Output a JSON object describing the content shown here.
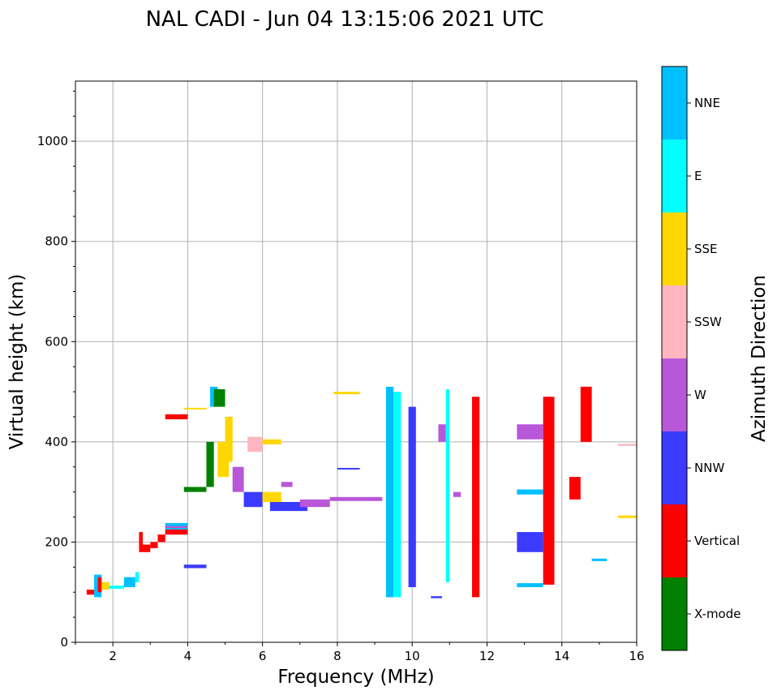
{
  "chart_data": {
    "type": "scatter",
    "title": "NAL CADI - Jun 04 13:15:06 2021 UTC",
    "xlabel": "Frequency (MHz)",
    "ylabel": "Virtual height (km)",
    "xlim": [
      1,
      16
    ],
    "ylim": [
      0,
      1120
    ],
    "xticks": [
      "2",
      "4",
      "6",
      "8",
      "10",
      "12",
      "14",
      "16"
    ],
    "yticks": [
      "0",
      "200",
      "400",
      "600",
      "800",
      "1000"
    ],
    "xtick_values": [
      2,
      4,
      6,
      8,
      10,
      12,
      14,
      16
    ],
    "ytick_values": [
      0,
      200,
      400,
      600,
      800,
      1000
    ],
    "grid": true,
    "colorbar": {
      "label": "Azimuth Direction",
      "categories": [
        "X-mode",
        "Vertical",
        "NNW",
        "W",
        "SSW",
        "SSE",
        "E",
        "NNE"
      ],
      "colors": [
        "#008000",
        "#ff0000",
        "#3b3bff",
        "#b857d8",
        "#ffb6c1",
        "#ffd700",
        "#00ffff",
        "#00bfff"
      ]
    },
    "segments": [
      {
        "f0": 1.3,
        "f1": 1.5,
        "h0": 95,
        "h1": 105,
        "dir": "Vertical"
      },
      {
        "f0": 1.5,
        "f1": 1.7,
        "h0": 90,
        "h1": 135,
        "dir": "NNE"
      },
      {
        "f0": 1.6,
        "f1": 1.7,
        "h0": 100,
        "h1": 130,
        "dir": "Vertical"
      },
      {
        "f0": 1.7,
        "f1": 1.9,
        "h0": 105,
        "h1": 120,
        "dir": "SSE"
      },
      {
        "f0": 1.9,
        "f1": 2.3,
        "h0": 107,
        "h1": 113,
        "dir": "E"
      },
      {
        "f0": 2.3,
        "f1": 2.6,
        "h0": 110,
        "h1": 130,
        "dir": "NNE"
      },
      {
        "f0": 2.6,
        "f1": 2.7,
        "h0": 120,
        "h1": 140,
        "dir": "E"
      },
      {
        "f0": 2.7,
        "f1": 2.8,
        "h0": 180,
        "h1": 220,
        "dir": "Vertical"
      },
      {
        "f0": 2.8,
        "f1": 3.0,
        "h0": 180,
        "h1": 195,
        "dir": "Vertical"
      },
      {
        "f0": 3.0,
        "f1": 3.2,
        "h0": 188,
        "h1": 200,
        "dir": "Vertical"
      },
      {
        "f0": 3.2,
        "f1": 3.4,
        "h0": 200,
        "h1": 215,
        "dir": "Vertical"
      },
      {
        "f0": 3.4,
        "f1": 4.0,
        "h0": 215,
        "h1": 238,
        "dir": "NNE"
      },
      {
        "f0": 3.4,
        "f1": 4.0,
        "h0": 215,
        "h1": 225,
        "dir": "Vertical"
      },
      {
        "f0": 3.4,
        "f1": 4.0,
        "h0": 228,
        "h1": 232,
        "dir": "W"
      },
      {
        "f0": 3.4,
        "f1": 4.0,
        "h0": 445,
        "h1": 455,
        "dir": "Vertical"
      },
      {
        "f0": 3.9,
        "f1": 4.5,
        "h0": 465,
        "h1": 468,
        "dir": "SSE"
      },
      {
        "f0": 3.9,
        "f1": 4.5,
        "h0": 300,
        "h1": 310,
        "dir": "X-mode"
      },
      {
        "f0": 3.9,
        "f1": 4.5,
        "h0": 148,
        "h1": 155,
        "dir": "NNW"
      },
      {
        "f0": 4.5,
        "f1": 4.7,
        "h0": 310,
        "h1": 400,
        "dir": "X-mode"
      },
      {
        "f0": 4.6,
        "f1": 4.8,
        "h0": 470,
        "h1": 510,
        "dir": "NNE"
      },
      {
        "f0": 4.7,
        "f1": 5.0,
        "h0": 470,
        "h1": 505,
        "dir": "X-mode"
      },
      {
        "f0": 4.8,
        "f1": 5.1,
        "h0": 330,
        "h1": 400,
        "dir": "SSE"
      },
      {
        "f0": 5.0,
        "f1": 5.2,
        "h0": 360,
        "h1": 450,
        "dir": "SSE"
      },
      {
        "f0": 5.2,
        "f1": 5.5,
        "h0": 300,
        "h1": 350,
        "dir": "W"
      },
      {
        "f0": 5.5,
        "f1": 6.0,
        "h0": 270,
        "h1": 300,
        "dir": "NNW"
      },
      {
        "f0": 5.6,
        "f1": 6.0,
        "h0": 380,
        "h1": 410,
        "dir": "SSW"
      },
      {
        "f0": 6.0,
        "f1": 6.5,
        "h0": 395,
        "h1": 405,
        "dir": "SSE"
      },
      {
        "f0": 6.0,
        "f1": 6.5,
        "h0": 280,
        "h1": 300,
        "dir": "SSE"
      },
      {
        "f0": 6.5,
        "f1": 6.8,
        "h0": 310,
        "h1": 320,
        "dir": "W"
      },
      {
        "f0": 6.2,
        "f1": 7.2,
        "h0": 262,
        "h1": 280,
        "dir": "NNW"
      },
      {
        "f0": 7.0,
        "f1": 7.8,
        "h0": 270,
        "h1": 285,
        "dir": "W"
      },
      {
        "f0": 7.8,
        "f1": 9.2,
        "h0": 282,
        "h1": 290,
        "dir": "W"
      },
      {
        "f0": 7.9,
        "f1": 8.6,
        "h0": 495,
        "h1": 500,
        "dir": "SSE"
      },
      {
        "f0": 8.0,
        "f1": 8.6,
        "h0": 345,
        "h1": 348,
        "dir": "NNW"
      },
      {
        "f0": 9.3,
        "f1": 9.5,
        "h0": 90,
        "h1": 510,
        "dir": "NNE"
      },
      {
        "f0": 9.5,
        "f1": 9.7,
        "h0": 90,
        "h1": 500,
        "dir": "E"
      },
      {
        "f0": 9.9,
        "f1": 10.1,
        "h0": 110,
        "h1": 470,
        "dir": "NNW"
      },
      {
        "f0": 10.5,
        "f1": 10.8,
        "h0": 88,
        "h1": 92,
        "dir": "NNW"
      },
      {
        "f0": 10.7,
        "f1": 10.9,
        "h0": 400,
        "h1": 435,
        "dir": "W"
      },
      {
        "f0": 10.9,
        "f1": 11.0,
        "h0": 120,
        "h1": 505,
        "dir": "E"
      },
      {
        "f0": 11.1,
        "f1": 11.3,
        "h0": 290,
        "h1": 300,
        "dir": "W"
      },
      {
        "f0": 11.6,
        "f1": 11.8,
        "h0": 90,
        "h1": 490,
        "dir": "Vertical"
      },
      {
        "f0": 12.8,
        "f1": 13.5,
        "h0": 110,
        "h1": 118,
        "dir": "NNE"
      },
      {
        "f0": 12.8,
        "f1": 13.5,
        "h0": 180,
        "h1": 220,
        "dir": "NNW"
      },
      {
        "f0": 12.8,
        "f1": 13.5,
        "h0": 295,
        "h1": 305,
        "dir": "NNE"
      },
      {
        "f0": 12.8,
        "f1": 13.5,
        "h0": 405,
        "h1": 435,
        "dir": "W"
      },
      {
        "f0": 13.5,
        "f1": 13.8,
        "h0": 115,
        "h1": 490,
        "dir": "Vertical"
      },
      {
        "f0": 14.2,
        "f1": 14.5,
        "h0": 285,
        "h1": 330,
        "dir": "Vertical"
      },
      {
        "f0": 14.5,
        "f1": 14.8,
        "h0": 400,
        "h1": 510,
        "dir": "Vertical"
      },
      {
        "f0": 14.8,
        "f1": 15.2,
        "h0": 162,
        "h1": 167,
        "dir": "NNE"
      },
      {
        "f0": 15.5,
        "f1": 16.0,
        "h0": 248,
        "h1": 253,
        "dir": "SSE"
      },
      {
        "f0": 15.5,
        "f1": 16.0,
        "h0": 392,
        "h1": 396,
        "dir": "SSW"
      }
    ]
  }
}
